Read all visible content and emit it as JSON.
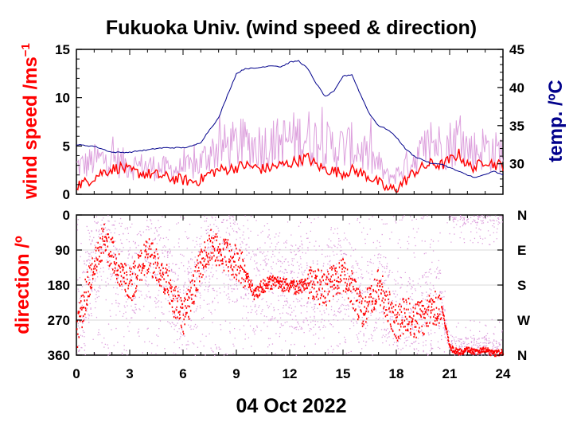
{
  "chart_data": [
    {
      "type": "line",
      "title": "Fukuoka Univ. (wind speed & direction)",
      "xlabel": "04 Oct 2022",
      "ylabel": "wind speed /ms",
      "ylabel_sup": "−1",
      "y2label": "temp. /ºC",
      "xlim": [
        0,
        24
      ],
      "ylim": [
        0,
        15
      ],
      "y2lim": [
        26,
        45
      ],
      "x_ticks": [
        "0",
        "3",
        "6",
        "9",
        "12",
        "15",
        "18",
        "21",
        "24"
      ],
      "y_ticks": [
        "0",
        "5",
        "10",
        "15"
      ],
      "y2_ticks": [
        "30",
        "35",
        "40",
        "45"
      ],
      "grid": false,
      "colors": {
        "mean": "#ff0000",
        "gust": "#dda0dd",
        "temp": "#00008b"
      },
      "series": [
        {
          "key": "mean",
          "x": [
            0,
            0.5,
            1,
            1.5,
            2,
            2.5,
            3,
            3.5,
            4,
            4.5,
            5,
            5.5,
            6,
            6.5,
            7,
            7.5,
            8,
            8.5,
            9,
            9.5,
            10,
            10.5,
            11,
            11.5,
            12,
            12.5,
            13,
            13.5,
            14,
            14.5,
            15,
            15.5,
            16,
            16.5,
            17,
            17.5,
            18,
            18.5,
            19,
            19.5,
            20,
            20.5,
            21,
            21.5,
            22,
            22.5,
            23,
            23.5,
            24
          ],
          "values": [
            1.0,
            1.2,
            1.8,
            2.3,
            2.6,
            2.8,
            2.4,
            2.2,
            2.1,
            2.0,
            1.8,
            1.6,
            1.5,
            1.3,
            1.5,
            2.2,
            2.5,
            2.6,
            2.8,
            3.0,
            2.8,
            2.6,
            2.8,
            3.0,
            3.2,
            3.5,
            3.8,
            3.0,
            2.6,
            2.4,
            2.2,
            2.5,
            2.2,
            1.8,
            1.2,
            0.5,
            0.6,
            1.4,
            2.3,
            2.8,
            3.2,
            3.0,
            3.5,
            4.2,
            3.0,
            2.8,
            3.6,
            3.1,
            3.0
          ]
        },
        {
          "key": "gust",
          "x": [
            0,
            0.5,
            1,
            1.5,
            2,
            2.5,
            3,
            3.5,
            4,
            4.5,
            5,
            5.5,
            6,
            6.5,
            7,
            7.5,
            8,
            8.5,
            9,
            9.5,
            10,
            10.5,
            11,
            11.5,
            12,
            12.5,
            13,
            13.5,
            14,
            14.5,
            15,
            15.5,
            16,
            16.5,
            17,
            17.5,
            18,
            18.5,
            19,
            19.5,
            20,
            20.5,
            21,
            21.5,
            22,
            22.5,
            23,
            23.5,
            24
          ],
          "values": [
            4.0,
            4.2,
            4.8,
            5.0,
            5.0,
            4.5,
            4.2,
            4.0,
            4.0,
            3.8,
            3.6,
            3.5,
            3.6,
            3.8,
            4.5,
            6.0,
            6.5,
            6.8,
            7.0,
            7.2,
            7.0,
            7.1,
            7.2,
            7.4,
            7.8,
            8.0,
            8.3,
            7.6,
            7.0,
            6.8,
            6.6,
            6.8,
            6.2,
            5.0,
            4.2,
            2.5,
            2.8,
            4.0,
            5.2,
            6.0,
            7.5,
            6.8,
            7.2,
            8.0,
            6.5,
            6.2,
            6.8,
            6.0,
            6.0
          ]
        },
        {
          "key": "temp",
          "axis": "y2",
          "x": [
            0,
            0.5,
            1,
            1.5,
            2,
            2.5,
            3,
            3.5,
            4,
            4.5,
            5,
            5.5,
            6,
            6.5,
            7,
            7.5,
            8,
            8.5,
            9,
            9.5,
            10,
            10.5,
            11,
            11.5,
            12,
            12.5,
            13,
            13.5,
            14,
            14.5,
            15,
            15.5,
            16,
            16.5,
            17,
            17.5,
            18,
            18.5,
            19,
            19.5,
            20,
            20.5,
            21,
            21.5,
            22,
            22.5,
            23,
            23.5,
            24
          ],
          "values": [
            32.5,
            32.4,
            32.3,
            31.9,
            31.5,
            31.5,
            31.5,
            31.7,
            31.8,
            32.0,
            32.1,
            32.1,
            32.1,
            32.3,
            32.8,
            34.5,
            36.0,
            39.0,
            41.8,
            42.5,
            42.5,
            42.7,
            42.9,
            42.7,
            43.3,
            43.5,
            42.5,
            40.5,
            38.8,
            39.5,
            41.5,
            41.7,
            39.0,
            36.5,
            35.0,
            34.5,
            33.5,
            32.0,
            31.0,
            30.5,
            30.0,
            30.0,
            29.5,
            29.0,
            28.5,
            28.2,
            28.6,
            29.0,
            28.5
          ]
        }
      ]
    },
    {
      "type": "scatter",
      "ylabel": "direction /º",
      "xlim": [
        0,
        24
      ],
      "ylim": [
        360,
        0
      ],
      "x_ticks": [
        "0",
        "3",
        "6",
        "9",
        "12",
        "15",
        "18",
        "21",
        "24"
      ],
      "y_ticks": [
        "0",
        "90",
        "180",
        "270",
        "360"
      ],
      "y2_ticks": [
        "N",
        "E",
        "S",
        "W",
        "N"
      ],
      "grid": true,
      "colors": {
        "mean": "#ff0000",
        "all": "#dda0dd"
      },
      "series": [
        {
          "key": "mean",
          "x": [
            0,
            0.5,
            1,
            1.5,
            2,
            2.5,
            3,
            3.5,
            4,
            4.5,
            5,
            5.5,
            6,
            6.5,
            7,
            7.5,
            8,
            8.5,
            9,
            9.5,
            10,
            10.5,
            11,
            11.5,
            12,
            12.5,
            13,
            13.5,
            14,
            14.5,
            15,
            15.5,
            16,
            16.5,
            17,
            17.5,
            18,
            18.5,
            19,
            19.5,
            20,
            20.5,
            21,
            21.5,
            22,
            22.5,
            23,
            23.5,
            24
          ],
          "values": [
            300,
            200,
            120,
            60,
            100,
            150,
            180,
            140,
            100,
            130,
            160,
            220,
            260,
            200,
            120,
            80,
            90,
            100,
            120,
            150,
            200,
            180,
            170,
            175,
            180,
            185,
            175,
            180,
            190,
            160,
            150,
            190,
            250,
            220,
            180,
            230,
            280,
            250,
            270,
            260,
            240,
            230,
            340,
            350,
            345,
            350,
            345,
            355,
            350
          ]
        }
      ]
    }
  ]
}
